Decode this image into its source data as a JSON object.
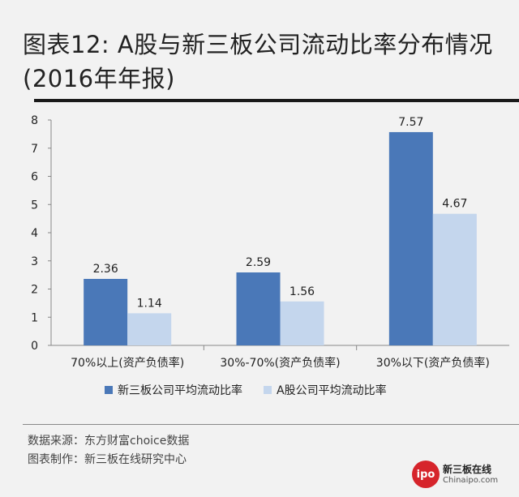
{
  "title": "图表12: A股与新三板公司流动比率分布情况(2016年年报)",
  "source_line": "数据来源：东方财富choice数据",
  "maker_line": "图表制作：新三板在线研究中心",
  "brand": {
    "name": "新三板在线",
    "url": "Chinaipo.com",
    "mark": "ipo"
  },
  "colors": {
    "series1": "#4a78b8",
    "series2": "#c4d6ed",
    "axis": "#888888"
  },
  "chart_data": {
    "type": "bar",
    "categories": [
      "70%以上(资产负债率)",
      "30%-70%(资产负债率)",
      "30%以下(资产负债率)"
    ],
    "series": [
      {
        "name": "新三板公司平均流动比率",
        "values": [
          2.36,
          2.59,
          7.57
        ]
      },
      {
        "name": "A股公司平均流动比率",
        "values": [
          1.14,
          1.56,
          4.67
        ]
      }
    ],
    "ylim": [
      0,
      8
    ],
    "yticks": [
      0,
      1,
      2,
      3,
      4,
      5,
      6,
      7,
      8
    ],
    "legend_position": "bottom",
    "grid": false
  }
}
